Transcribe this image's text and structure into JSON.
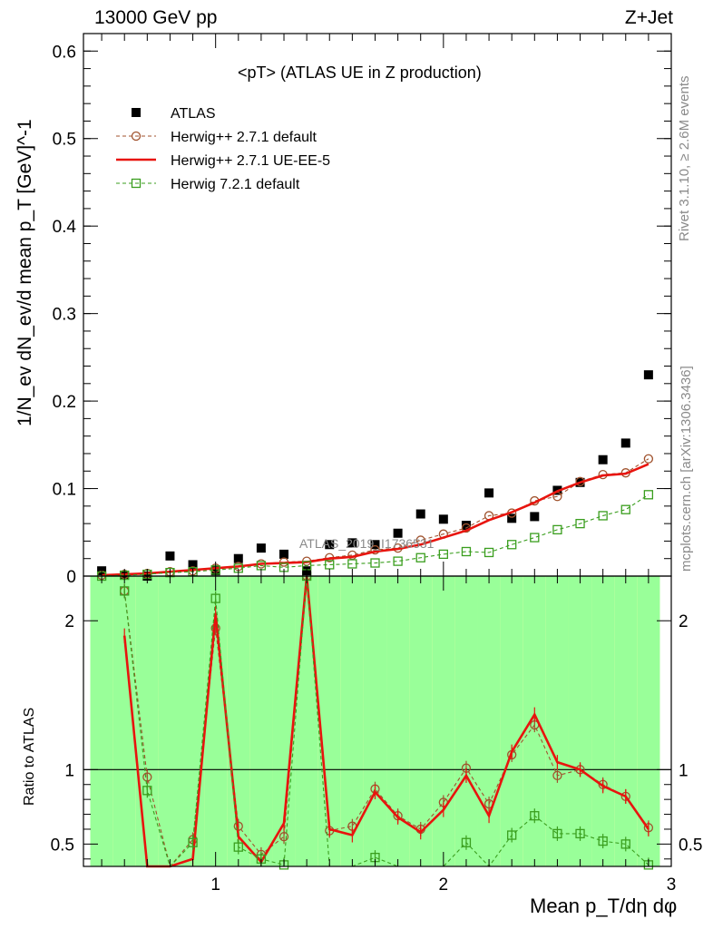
{
  "header": {
    "left": "13000 GeV pp",
    "right": "Z+Jet"
  },
  "side": {
    "rivet": "Rivet 3.1.10, ≥ 2.6M events",
    "mcplots": "mcplots.cern.ch [arXiv:1306.3436]"
  },
  "chart_data": [
    {
      "panel": "main",
      "type": "scatter",
      "title": "<pT> (ATLAS UE in Z production)",
      "ylabel": "1/N_ev dN_ev/d mean p_T [GeV]^-1",
      "xlim": [
        0.42,
        3.0
      ],
      "ylim": [
        0,
        0.62
      ],
      "yticks": [
        0,
        0.1,
        0.2,
        0.3,
        0.4,
        0.5,
        0.6
      ],
      "ytick_labels": [
        "0",
        "0.1",
        "0.2",
        "0.3",
        "0.4",
        "0.5",
        "0.6"
      ],
      "watermark": "ATLAS_2019_I1736531",
      "legend_position": "top-left",
      "series": [
        {
          "name": "ATLAS",
          "color": "#000000",
          "marker": "filled-square",
          "x": [
            0.5,
            0.6,
            0.7,
            0.8,
            0.9,
            1.0,
            1.1,
            1.2,
            1.3,
            1.4,
            1.5,
            1.6,
            1.7,
            1.8,
            1.9,
            2.0,
            2.1,
            2.2,
            2.3,
            2.4,
            2.5,
            2.6,
            2.7,
            2.8,
            2.9
          ],
          "y": [
            0.006,
            0.001,
            0.0,
            0.023,
            0.013,
            0.006,
            0.02,
            0.032,
            0.025,
            0.006,
            0.036,
            0.038,
            0.036,
            0.049,
            0.071,
            0.065,
            0.058,
            0.095,
            0.066,
            0.068,
            0.098,
            0.107,
            0.133,
            0.152,
            0.23
          ]
        },
        {
          "name": "Herwig++ 2.7.1 default",
          "color": "#a0522d",
          "marker": "open-circle",
          "dashed": true,
          "x": [
            0.5,
            0.6,
            0.7,
            0.8,
            0.9,
            1.0,
            1.1,
            1.2,
            1.3,
            1.4,
            1.5,
            1.6,
            1.7,
            1.8,
            1.9,
            2.0,
            2.1,
            2.2,
            2.3,
            2.4,
            2.5,
            2.6,
            2.7,
            2.8,
            2.9
          ],
          "y": [
            0.001,
            0.002,
            0.003,
            0.005,
            0.006,
            0.009,
            0.011,
            0.014,
            0.016,
            0.017,
            0.021,
            0.024,
            0.03,
            0.032,
            0.041,
            0.048,
            0.055,
            0.069,
            0.072,
            0.086,
            0.091,
            0.108,
            0.116,
            0.118,
            0.134
          ]
        },
        {
          "name": "Herwig++ 2.7.1 UE-EE-5",
          "color": "#e8140e",
          "marker": "none",
          "dashed": false,
          "x": [
            0.5,
            0.6,
            0.7,
            0.8,
            0.9,
            1.0,
            1.1,
            1.2,
            1.3,
            1.4,
            1.5,
            1.6,
            1.7,
            1.8,
            1.9,
            2.0,
            2.1,
            2.2,
            2.3,
            2.4,
            2.5,
            2.6,
            2.7,
            2.8,
            2.9
          ],
          "y": [
            0.001,
            0.002,
            0.003,
            0.005,
            0.007,
            0.009,
            0.011,
            0.014,
            0.015,
            0.016,
            0.02,
            0.022,
            0.028,
            0.031,
            0.036,
            0.044,
            0.052,
            0.064,
            0.073,
            0.084,
            0.097,
            0.107,
            0.115,
            0.117,
            0.128
          ]
        },
        {
          "name": "Herwig 7.2.1 default",
          "color": "#3a9e1e",
          "marker": "open-square",
          "dashed": true,
          "x": [
            0.5,
            0.6,
            0.7,
            0.8,
            0.9,
            1.0,
            1.1,
            1.2,
            1.3,
            1.4,
            1.5,
            1.6,
            1.7,
            1.8,
            1.9,
            2.0,
            2.1,
            2.2,
            2.3,
            2.4,
            2.5,
            2.6,
            2.7,
            2.8,
            2.9
          ],
          "y": [
            0.0,
            0.001,
            0.002,
            0.004,
            0.005,
            0.007,
            0.009,
            0.012,
            0.01,
            0.012,
            0.013,
            0.014,
            0.015,
            0.017,
            0.021,
            0.025,
            0.028,
            0.027,
            0.036,
            0.044,
            0.053,
            0.06,
            0.069,
            0.076,
            0.093
          ]
        }
      ]
    },
    {
      "panel": "ratio",
      "type": "line",
      "ylabel": "Ratio to ATLAS",
      "xlabel": "Mean p_T/dη dφ",
      "xlim": [
        0.42,
        3.0
      ],
      "ylim": [
        0.35,
        2.3
      ],
      "xticks": [
        1,
        2,
        3
      ],
      "xtick_labels": [
        "1",
        "2",
        "3"
      ],
      "yticks": [
        0.5,
        1,
        2
      ],
      "ytick_labels": [
        "0.5",
        "1",
        "2"
      ],
      "reference_line": 1,
      "bands": {
        "bin_edges": [
          0.45,
          0.55,
          0.65,
          0.75,
          0.85,
          0.95,
          1.05,
          1.15,
          1.25,
          1.35,
          1.45,
          1.55,
          1.65,
          1.75,
          1.85,
          1.95,
          2.05,
          2.15,
          2.25,
          2.35,
          2.45,
          2.55,
          2.65,
          2.75,
          2.85,
          2.95
        ],
        "yellow_low": [
          0.35,
          0.35,
          0.35,
          0.35,
          0.35,
          0.35,
          0.35,
          0.35,
          0.35,
          0.35,
          0.35,
          0.35,
          0.35,
          0.35,
          0.35,
          0.35,
          0.35,
          0.35,
          0.35,
          0.35,
          0.35,
          0.35,
          0.35,
          0.35,
          0.35
        ],
        "yellow_high": [
          2.3,
          2.3,
          2.3,
          2.3,
          2.3,
          2.3,
          2.3,
          2.3,
          2.3,
          2.3,
          2.3,
          2.3,
          2.3,
          2.3,
          2.3,
          2.3,
          2.3,
          2.3,
          2.3,
          2.3,
          2.3,
          2.3,
          2.3,
          2.3,
          2.3
        ],
        "green_low": [
          0.35,
          0.35,
          0.35,
          0.35,
          0.35,
          0.35,
          0.35,
          0.35,
          0.35,
          0.35,
          0.35,
          0.35,
          0.35,
          0.35,
          0.35,
          0.35,
          0.35,
          0.35,
          0.35,
          0.35,
          0.35,
          0.35,
          0.35,
          0.35,
          0.35
        ],
        "green_high": [
          2.3,
          2.3,
          2.3,
          2.3,
          2.3,
          2.3,
          2.3,
          2.3,
          2.3,
          2.3,
          2.3,
          2.3,
          2.3,
          2.3,
          2.3,
          2.3,
          2.3,
          2.3,
          2.3,
          2.3,
          2.3,
          2.3,
          2.3,
          2.3,
          2.3
        ],
        "yellow_color": "#ffff99",
        "green_color": "#99ff99"
      },
      "series": [
        {
          "name": "Herwig++ 2.7.1 default",
          "color": "#a0522d",
          "marker": "open-circle",
          "dashed": true,
          "x": [
            0.6,
            0.7,
            0.8,
            0.9,
            1.0,
            1.1,
            1.2,
            1.3,
            1.4,
            1.5,
            1.6,
            1.7,
            1.8,
            1.9,
            2.0,
            2.1,
            2.2,
            2.3,
            2.4,
            2.5,
            2.6,
            2.7,
            2.8,
            2.9
          ],
          "y": [
            2.2,
            0.95,
            0.3,
            0.53,
            1.95,
            0.62,
            0.43,
            0.55,
            2.3,
            0.59,
            0.62,
            0.87,
            0.69,
            0.6,
            0.78,
            1.01,
            0.77,
            1.1,
            1.3,
            0.96,
            1.0,
            0.9,
            0.82,
            0.61
          ]
        },
        {
          "name": "Herwig++ 2.7.1 UE-EE-5",
          "color": "#e8140e",
          "marker": "none",
          "dashed": false,
          "x": [
            0.6,
            0.7,
            0.8,
            0.9,
            1.0,
            1.1,
            1.2,
            1.3,
            1.4,
            1.5,
            1.6,
            1.7,
            1.8,
            1.9,
            2.0,
            2.1,
            2.2,
            2.3,
            2.4,
            2.5,
            2.6,
            2.7,
            2.8,
            2.9
          ],
          "y": [
            1.9,
            0.35,
            0.3,
            0.4,
            2.05,
            0.55,
            0.38,
            0.64,
            2.3,
            0.6,
            0.56,
            0.85,
            0.68,
            0.58,
            0.73,
            0.96,
            0.69,
            1.12,
            1.37,
            1.05,
            1.0,
            0.89,
            0.82,
            0.6
          ]
        },
        {
          "name": "Herwig 7.2.1 default",
          "color": "#3a9e1e",
          "marker": "open-square",
          "dashed": true,
          "x": [
            0.6,
            0.7,
            0.8,
            0.9,
            1.0,
            1.1,
            1.2,
            1.3,
            1.4,
            1.5,
            1.6,
            1.7,
            1.8,
            1.9,
            2.0,
            2.1,
            2.2,
            2.3,
            2.4,
            2.5,
            2.6,
            2.7,
            2.8,
            2.9
          ],
          "y": [
            2.2,
            0.86,
            0.3,
            0.51,
            2.15,
            0.48,
            0.4,
            0.36,
            2.3,
            0.3,
            0.3,
            0.41,
            0.3,
            0.3,
            0.3,
            0.51,
            0.3,
            0.56,
            0.69,
            0.57,
            0.57,
            0.52,
            0.5,
            0.36
          ]
        }
      ]
    }
  ]
}
